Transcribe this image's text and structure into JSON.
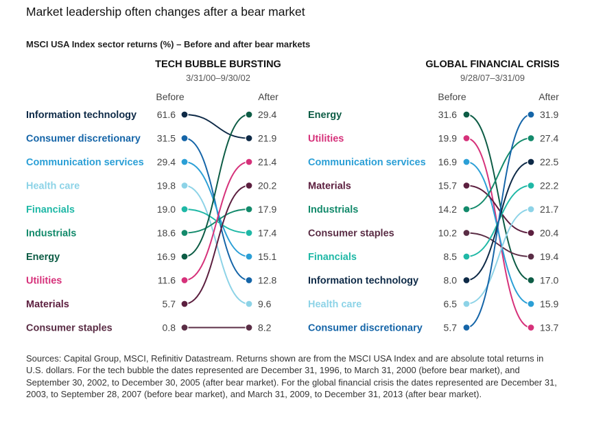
{
  "title": "Market leadership often changes after a bear market",
  "subtitle": "MSCI USA Index sector returns (%) – Before and after bear markets",
  "colors": {
    "Information technology": "#0e2a47",
    "Consumer discretionary": "#1565a8",
    "Communication services": "#2b9fd6",
    "Health care": "#8dd3e7",
    "Financials": "#1fb8a6",
    "Industrials": "#138a6b",
    "Energy": "#0d5c45",
    "Utilities": "#d6317a",
    "Materials": "#5c1f3f",
    "Consumer staples": "#5a2d45"
  },
  "chart_data": [
    {
      "type": "slope",
      "title": "TECH BUBBLE BURSTING",
      "subtitle": "3/31/00–9/30/02",
      "before_label": "Before",
      "after_label": "After",
      "sectors": [
        {
          "name": "Information technology",
          "before": 61.6,
          "after": 21.9
        },
        {
          "name": "Consumer discretionary",
          "before": 31.5,
          "after": 12.8
        },
        {
          "name": "Communication services",
          "before": 29.4,
          "after": 15.1
        },
        {
          "name": "Health care",
          "before": 19.8,
          "after": 9.6
        },
        {
          "name": "Financials",
          "before": 19.0,
          "after": 17.4
        },
        {
          "name": "Industrials",
          "before": 18.6,
          "after": 17.9
        },
        {
          "name": "Energy",
          "before": 16.9,
          "after": 29.4
        },
        {
          "name": "Utilities",
          "before": 11.6,
          "after": 21.4
        },
        {
          "name": "Materials",
          "before": 5.7,
          "after": 20.2
        },
        {
          "name": "Consumer staples",
          "before": 0.8,
          "after": 8.2
        }
      ]
    },
    {
      "type": "slope",
      "title": "GLOBAL FINANCIAL CRISIS",
      "subtitle": "9/28/07–3/31/09",
      "before_label": "Before",
      "after_label": "After",
      "sectors": [
        {
          "name": "Energy",
          "before": 31.6,
          "after": 17.0
        },
        {
          "name": "Utilities",
          "before": 19.9,
          "after": 13.7
        },
        {
          "name": "Communication services",
          "before": 16.9,
          "after": 15.9
        },
        {
          "name": "Materials",
          "before": 15.7,
          "after": 20.4
        },
        {
          "name": "Industrials",
          "before": 14.2,
          "after": 27.4
        },
        {
          "name": "Consumer staples",
          "before": 10.2,
          "after": 19.4
        },
        {
          "name": "Financials",
          "before": 8.5,
          "after": 22.2
        },
        {
          "name": "Information technology",
          "before": 8.0,
          "after": 22.5
        },
        {
          "name": "Health care",
          "before": 6.5,
          "after": 21.7
        },
        {
          "name": "Consumer discretionary",
          "before": 5.7,
          "after": 31.9
        }
      ]
    }
  ],
  "footer": "Sources: Capital Group, MSCI, Refinitiv Datastream. Returns shown are from the MSCI USA Index and are absolute total returns in U.S. dollars. For the tech bubble the dates represented are December 31, 1996, to March 31, 2000 (before bear market), and September 30, 2002, to December 30, 2005 (after bear market). For the global financial crisis the dates represented are December 31, 2003, to September 28, 2007 (before bear market), and March 31, 2009, to December 31, 2013 (after bear market)."
}
